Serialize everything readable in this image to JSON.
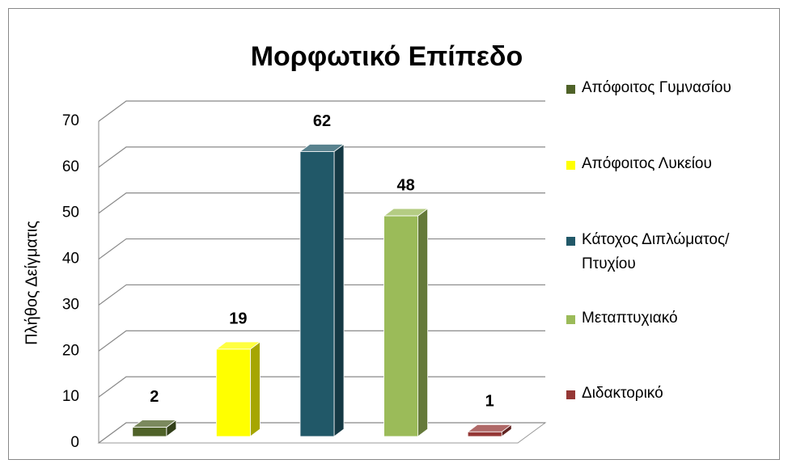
{
  "chart_data": {
    "type": "bar3d",
    "title": "Μορφωτικό Επίπεδο",
    "y_label": "Πλήθος Δείγματις",
    "series": [
      {
        "name": "Απόφοιτος Γυμνασίου",
        "color": "#4f6228",
        "values": [
          2
        ]
      },
      {
        "name": "Απόφοιτος Λυκείου",
        "color": "#ffff00",
        "values": [
          19
        ]
      },
      {
        "name": "Κάτοχος Διπλώματος/Πτυχίου",
        "color": "#215868",
        "values": [
          62
        ]
      },
      {
        "name": "Μεταπτυχιακό",
        "color": "#9bbb59",
        "values": [
          48
        ]
      },
      {
        "name": "Διδακτορικό",
        "color": "#953735",
        "values": [
          1
        ]
      }
    ],
    "ylim": [
      0,
      70
    ],
    "yticks": [
      0,
      10,
      20,
      30,
      40,
      50,
      60,
      70
    ],
    "grid": true,
    "legend": "right"
  }
}
